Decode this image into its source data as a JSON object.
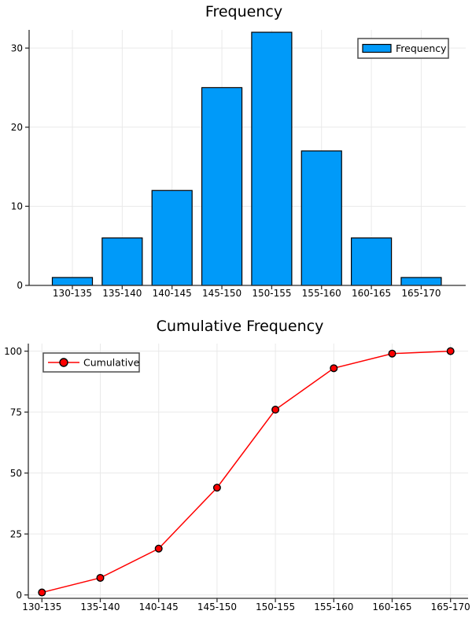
{
  "chart_data": [
    {
      "type": "bar",
      "title": "Frequency",
      "categories": [
        "130-135",
        "135-140",
        "140-145",
        "145-150",
        "150-155",
        "155-160",
        "160-165",
        "165-170"
      ],
      "values": [
        1,
        6,
        12,
        25,
        32,
        17,
        6,
        1
      ],
      "legend_label": "Frequency",
      "legend_position": "top-right",
      "xlabel": "",
      "ylabel": "",
      "yticks": [
        0,
        10,
        20,
        30
      ],
      "ylim": [
        0,
        32.3
      ],
      "grid": true,
      "bar_color": "#009AF9",
      "bar_edge_color": "#000000"
    },
    {
      "type": "line",
      "title": "Cumulative Frequency",
      "categories": [
        "130-135",
        "135-140",
        "140-145",
        "145-150",
        "150-155",
        "155-160",
        "160-165",
        "165-170"
      ],
      "values": [
        1,
        7,
        19,
        44,
        76,
        93,
        99,
        100
      ],
      "legend_label": "Cumulative",
      "legend_position": "top-left",
      "xlabel": "",
      "ylabel": "",
      "yticks": [
        0,
        25,
        50,
        75,
        100
      ],
      "ylim": [
        -1.4,
        103.1
      ],
      "grid": true,
      "line_color": "#FF0000",
      "marker_fill": "#FF0000",
      "marker_edge_color": "#000000"
    }
  ],
  "colors": {
    "background": "#FFFFFF",
    "grid": "#E9E9E9",
    "spine": "#2E2E2E",
    "text": "#000000",
    "legend_border": "#4D4D4D"
  }
}
